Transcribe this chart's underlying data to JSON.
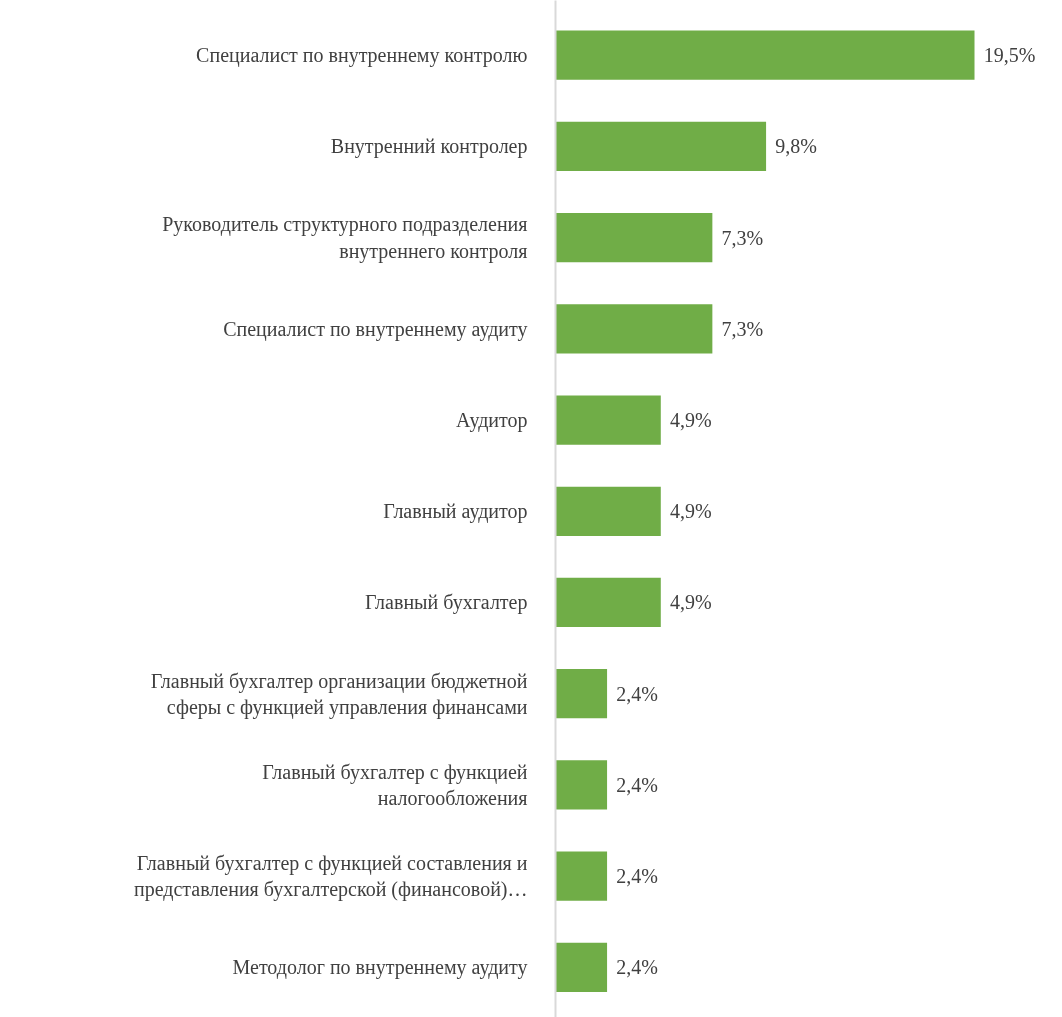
{
  "chart_data": {
    "type": "bar",
    "orientation": "horizontal",
    "color": "#70ad47",
    "categories": [
      "Специалист по внутреннему контролю",
      "Внутренний контролер",
      "Руководитель структурного подразделения внутреннего контроля",
      "Специалист по внутреннему аудиту",
      "Аудитор",
      "Главный аудитор",
      "Главный бухгалтер",
      "Главный бухгалтер организации бюджетной сферы с функцией управления финансами",
      "Главный бухгалтер с функцией налогообложения",
      "Главный бухгалтер с функцией составления и представления бухгалтерской (финансовой)…",
      "Методолог по внутреннему аудиту"
    ],
    "values": [
      19.5,
      9.8,
      7.3,
      7.3,
      4.9,
      4.9,
      4.9,
      2.4,
      2.4,
      2.4,
      2.4
    ],
    "value_labels": [
      "19,5%",
      "9,8%",
      "7,3%",
      "7,3%",
      "4,9%",
      "4,9%",
      "4,9%",
      "2,4%",
      "2,4%",
      "2,4%",
      "2,4%"
    ]
  }
}
